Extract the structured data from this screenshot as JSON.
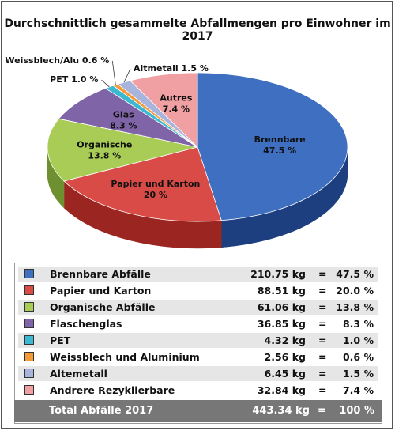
{
  "chart_data": {
    "type": "pie",
    "title": "Durchschnittlich gesammelte Abfallmengen pro Einwohner im 2017",
    "slices": [
      {
        "label": "Brennbare",
        "legend": "Brennbare Abfälle",
        "kg": "210.75 kg",
        "pct_text": "47.5 %",
        "value": 47.5,
        "color": "#3e6fc0",
        "dark": "#1d3f80"
      },
      {
        "label": "Papier und Karton",
        "legend": "Papier und Karton",
        "kg": "88.51 kg",
        "pct_text": "20.0 %",
        "label_pct": "20 %",
        "value": 20.0,
        "color": "#d94b46",
        "dark": "#9b2621"
      },
      {
        "label": "Organische",
        "legend": "Organische Abfälle",
        "kg": "61.06 kg",
        "pct_text": "13.8 %",
        "value": 13.8,
        "color": "#a8cc55",
        "dark": "#6e9030"
      },
      {
        "label": "Glas",
        "legend": "Flaschenglas",
        "kg": "36.85 kg",
        "pct_text": "8.3 %",
        "value": 8.3,
        "color": "#8064a8",
        "dark": "#4f3d70"
      },
      {
        "label": "PET",
        "legend": "PET",
        "kg": "4.32 kg",
        "pct_text": "1.0 %",
        "value": 1.0,
        "color": "#3cb8d2",
        "dark": "#20798c"
      },
      {
        "label": "Weissblech/Alu",
        "legend": "Weissblech und Aluminium",
        "kg": "2.56 kg",
        "pct_text": "0.6 %",
        "value": 0.6,
        "color": "#f39a3b",
        "dark": "#b16520"
      },
      {
        "label": "Altmetall",
        "legend": "Altemetall",
        "kg": "6.45 kg",
        "pct_text": "1.5 %",
        "value": 1.5,
        "color": "#a8b4dc",
        "dark": "#6a77a6"
      },
      {
        "label": "Autres",
        "legend": "Andrere Rezyklierbare",
        "kg": "32.84 kg",
        "pct_text": "7.4 %",
        "value": 7.4,
        "color": "#f0a0a2",
        "dark": "#b46063"
      }
    ],
    "total": {
      "label": "Total Abfälle 2017",
      "kg": "443.34 kg",
      "pct_text": "100 %"
    },
    "equals": "="
  }
}
